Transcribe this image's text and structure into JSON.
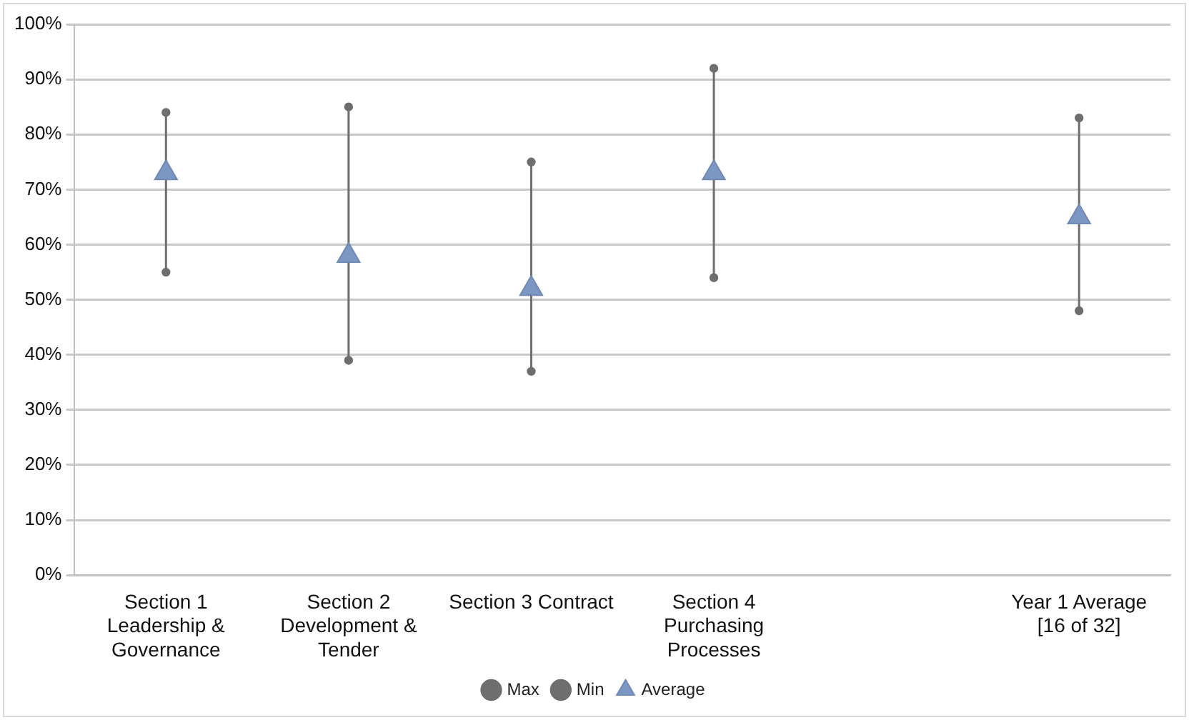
{
  "chart_data": {
    "type": "scatter",
    "categories": [
      "Section 1 Leadership & Governance",
      "Section 2 Development & Tender",
      "Section 3 Contract",
      "Section 4 Purchasing Processes",
      null,
      "Year 1 Average [16 of 32]"
    ],
    "series": [
      {
        "name": "Max",
        "color": "#6e6e6e",
        "marker": "circle",
        "values": [
          84,
          85,
          75,
          92,
          null,
          83
        ]
      },
      {
        "name": "Min",
        "color": "#6e6e6e",
        "marker": "circle",
        "values": [
          55,
          39,
          37,
          54,
          null,
          48
        ]
      },
      {
        "name": "Average",
        "color": "#7d97c4",
        "marker": "triangle",
        "values": [
          73,
          58,
          52,
          73,
          null,
          65
        ]
      }
    ],
    "ylim": [
      0,
      100
    ],
    "yticks": [
      {
        "value": 0,
        "label": "0%"
      },
      {
        "value": 10,
        "label": "10%"
      },
      {
        "value": 20,
        "label": "20%"
      },
      {
        "value": 30,
        "label": "30%"
      },
      {
        "value": 40,
        "label": "40%"
      },
      {
        "value": 50,
        "label": "50%"
      },
      {
        "value": 60,
        "label": "60%"
      },
      {
        "value": 70,
        "label": "70%"
      },
      {
        "value": 80,
        "label": "80%"
      },
      {
        "value": 90,
        "label": "90%"
      },
      {
        "value": 100,
        "label": "100%"
      }
    ],
    "grid": "y",
    "legend": "bottom"
  }
}
